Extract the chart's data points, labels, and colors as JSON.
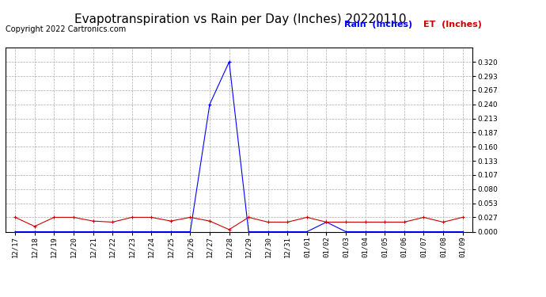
{
  "title": "Evapotranspiration vs Rain per Day (Inches) 20220110",
  "copyright": "Copyright 2022 Cartronics.com",
  "legend_rain": "Rain  (Inches)",
  "legend_et": "ET  (Inches)",
  "x_labels": [
    "12/17",
    "12/18",
    "12/19",
    "12/20",
    "12/21",
    "12/22",
    "12/23",
    "12/24",
    "12/25",
    "12/26",
    "12/27",
    "12/28",
    "12/29",
    "12/30",
    "12/31",
    "01/01",
    "01/02",
    "01/03",
    "01/04",
    "01/05",
    "01/06",
    "01/07",
    "01/08",
    "01/09"
  ],
  "rain_data": [
    0.0,
    0.0,
    0.0,
    0.0,
    0.0,
    0.0,
    0.0,
    0.0,
    0.0,
    0.0,
    0.24,
    0.32,
    0.0,
    0.0,
    0.0,
    0.0,
    0.018,
    0.0,
    0.0,
    0.0,
    0.0,
    0.0,
    0.0,
    0.0
  ],
  "et_data": [
    0.027,
    0.01,
    0.027,
    0.027,
    0.02,
    0.018,
    0.027,
    0.027,
    0.02,
    0.027,
    0.02,
    0.004,
    0.027,
    0.018,
    0.018,
    0.027,
    0.018,
    0.018,
    0.018,
    0.018,
    0.018,
    0.027,
    0.018,
    0.027
  ],
  "rain_color": "#0000ff",
  "et_color": "#cc0000",
  "background_color": "#ffffff",
  "grid_color": "#aaaaaa",
  "ylim": [
    0.0,
    0.347
  ],
  "yticks": [
    0.0,
    0.027,
    0.053,
    0.08,
    0.107,
    0.133,
    0.16,
    0.187,
    0.213,
    0.24,
    0.267,
    0.293,
    0.32
  ],
  "title_fontsize": 11,
  "copyright_fontsize": 7,
  "legend_fontsize": 8,
  "tick_fontsize": 6.5
}
